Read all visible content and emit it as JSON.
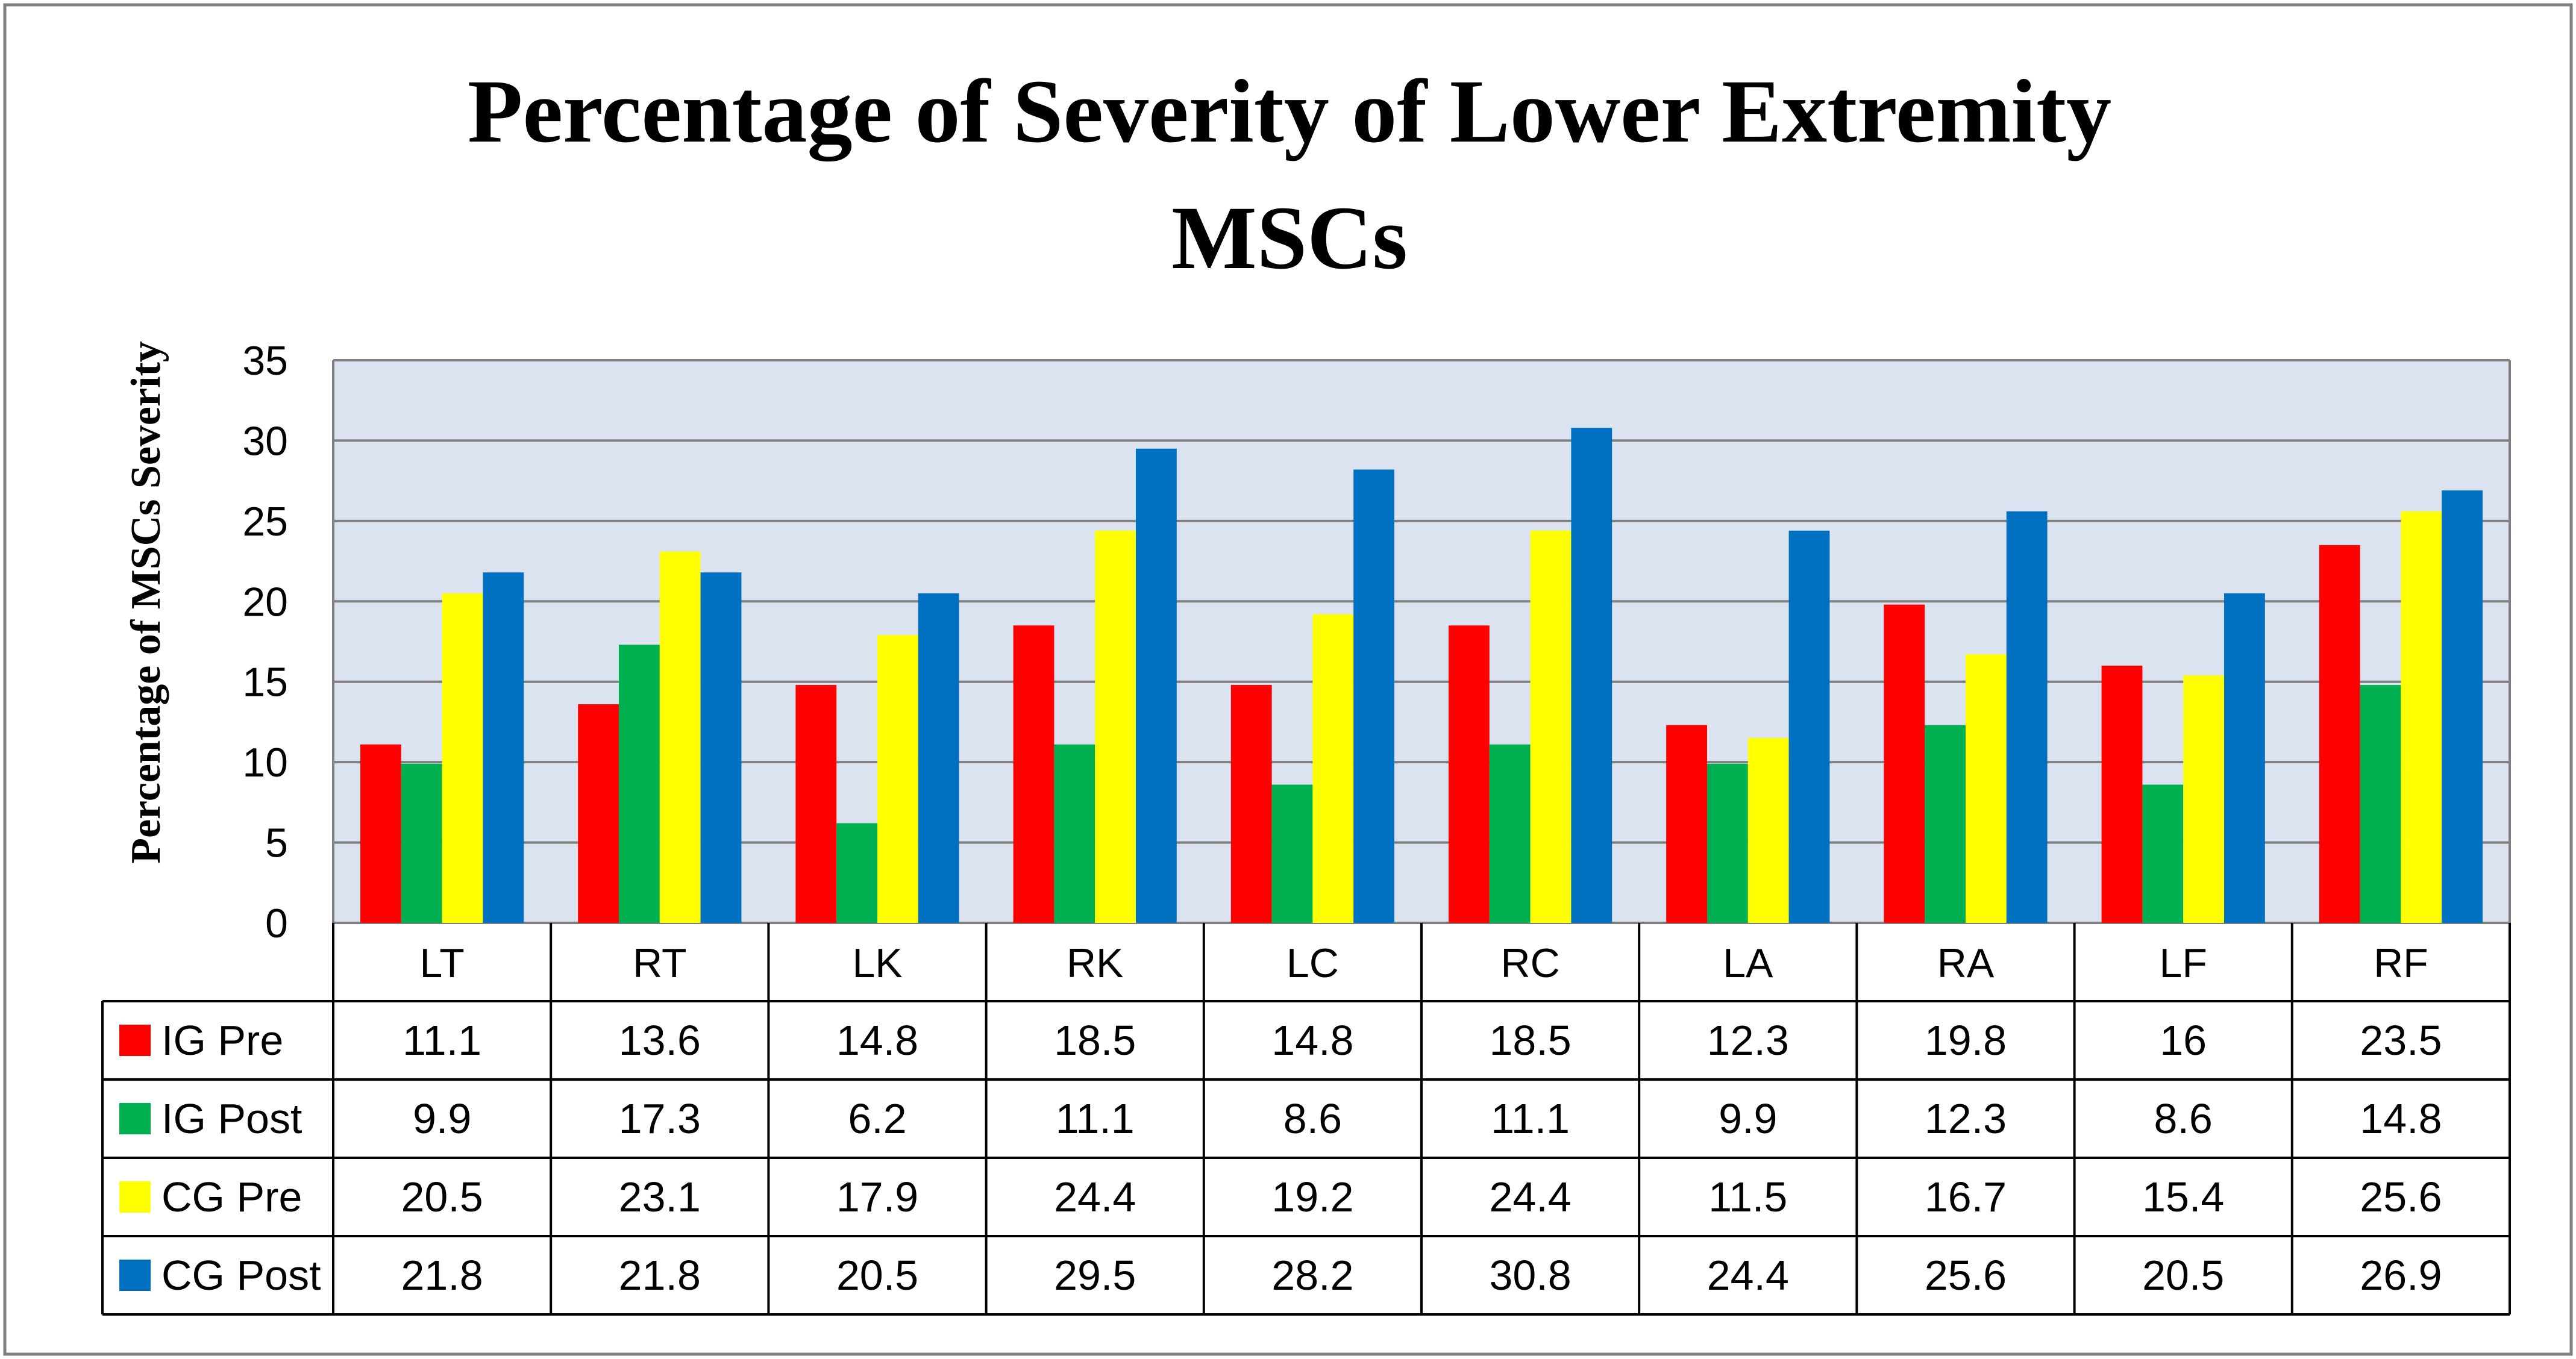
{
  "chart_data": {
    "type": "bar",
    "title": "Percentage of Severity of Lower Extremity MSCs",
    "title_lines": [
      "Percentage of Severity of Lower Extremity",
      "MSCs"
    ],
    "xlabel": "",
    "ylabel": "Percentage of MSCs Severity",
    "ylim": [
      0,
      35
    ],
    "yticks": [
      0,
      5,
      10,
      15,
      20,
      25,
      30,
      35
    ],
    "grid": true,
    "legend": "data-table-left",
    "categories": [
      "LT",
      "RT",
      "LK",
      "RK",
      "LC",
      "RC",
      "LA",
      "RA",
      "LF",
      "RF"
    ],
    "series": [
      {
        "name": "IG Pre",
        "color": "#ff0000",
        "values": [
          11.1,
          13.6,
          14.8,
          18.5,
          14.8,
          18.5,
          12.3,
          19.8,
          16,
          23.5
        ]
      },
      {
        "name": "IG Post",
        "color": "#00b050",
        "values": [
          9.9,
          17.3,
          6.2,
          11.1,
          8.6,
          11.1,
          9.9,
          12.3,
          8.6,
          14.8
        ]
      },
      {
        "name": "CG Pre",
        "color": "#ffff00",
        "values": [
          20.5,
          23.1,
          17.9,
          24.4,
          19.2,
          24.4,
          11.5,
          16.7,
          15.4,
          25.6
        ]
      },
      {
        "name": "CG Post",
        "color": "#0070c0",
        "values": [
          21.8,
          21.8,
          20.5,
          29.5,
          28.2,
          30.8,
          24.4,
          25.6,
          20.5,
          26.9
        ]
      }
    ]
  }
}
